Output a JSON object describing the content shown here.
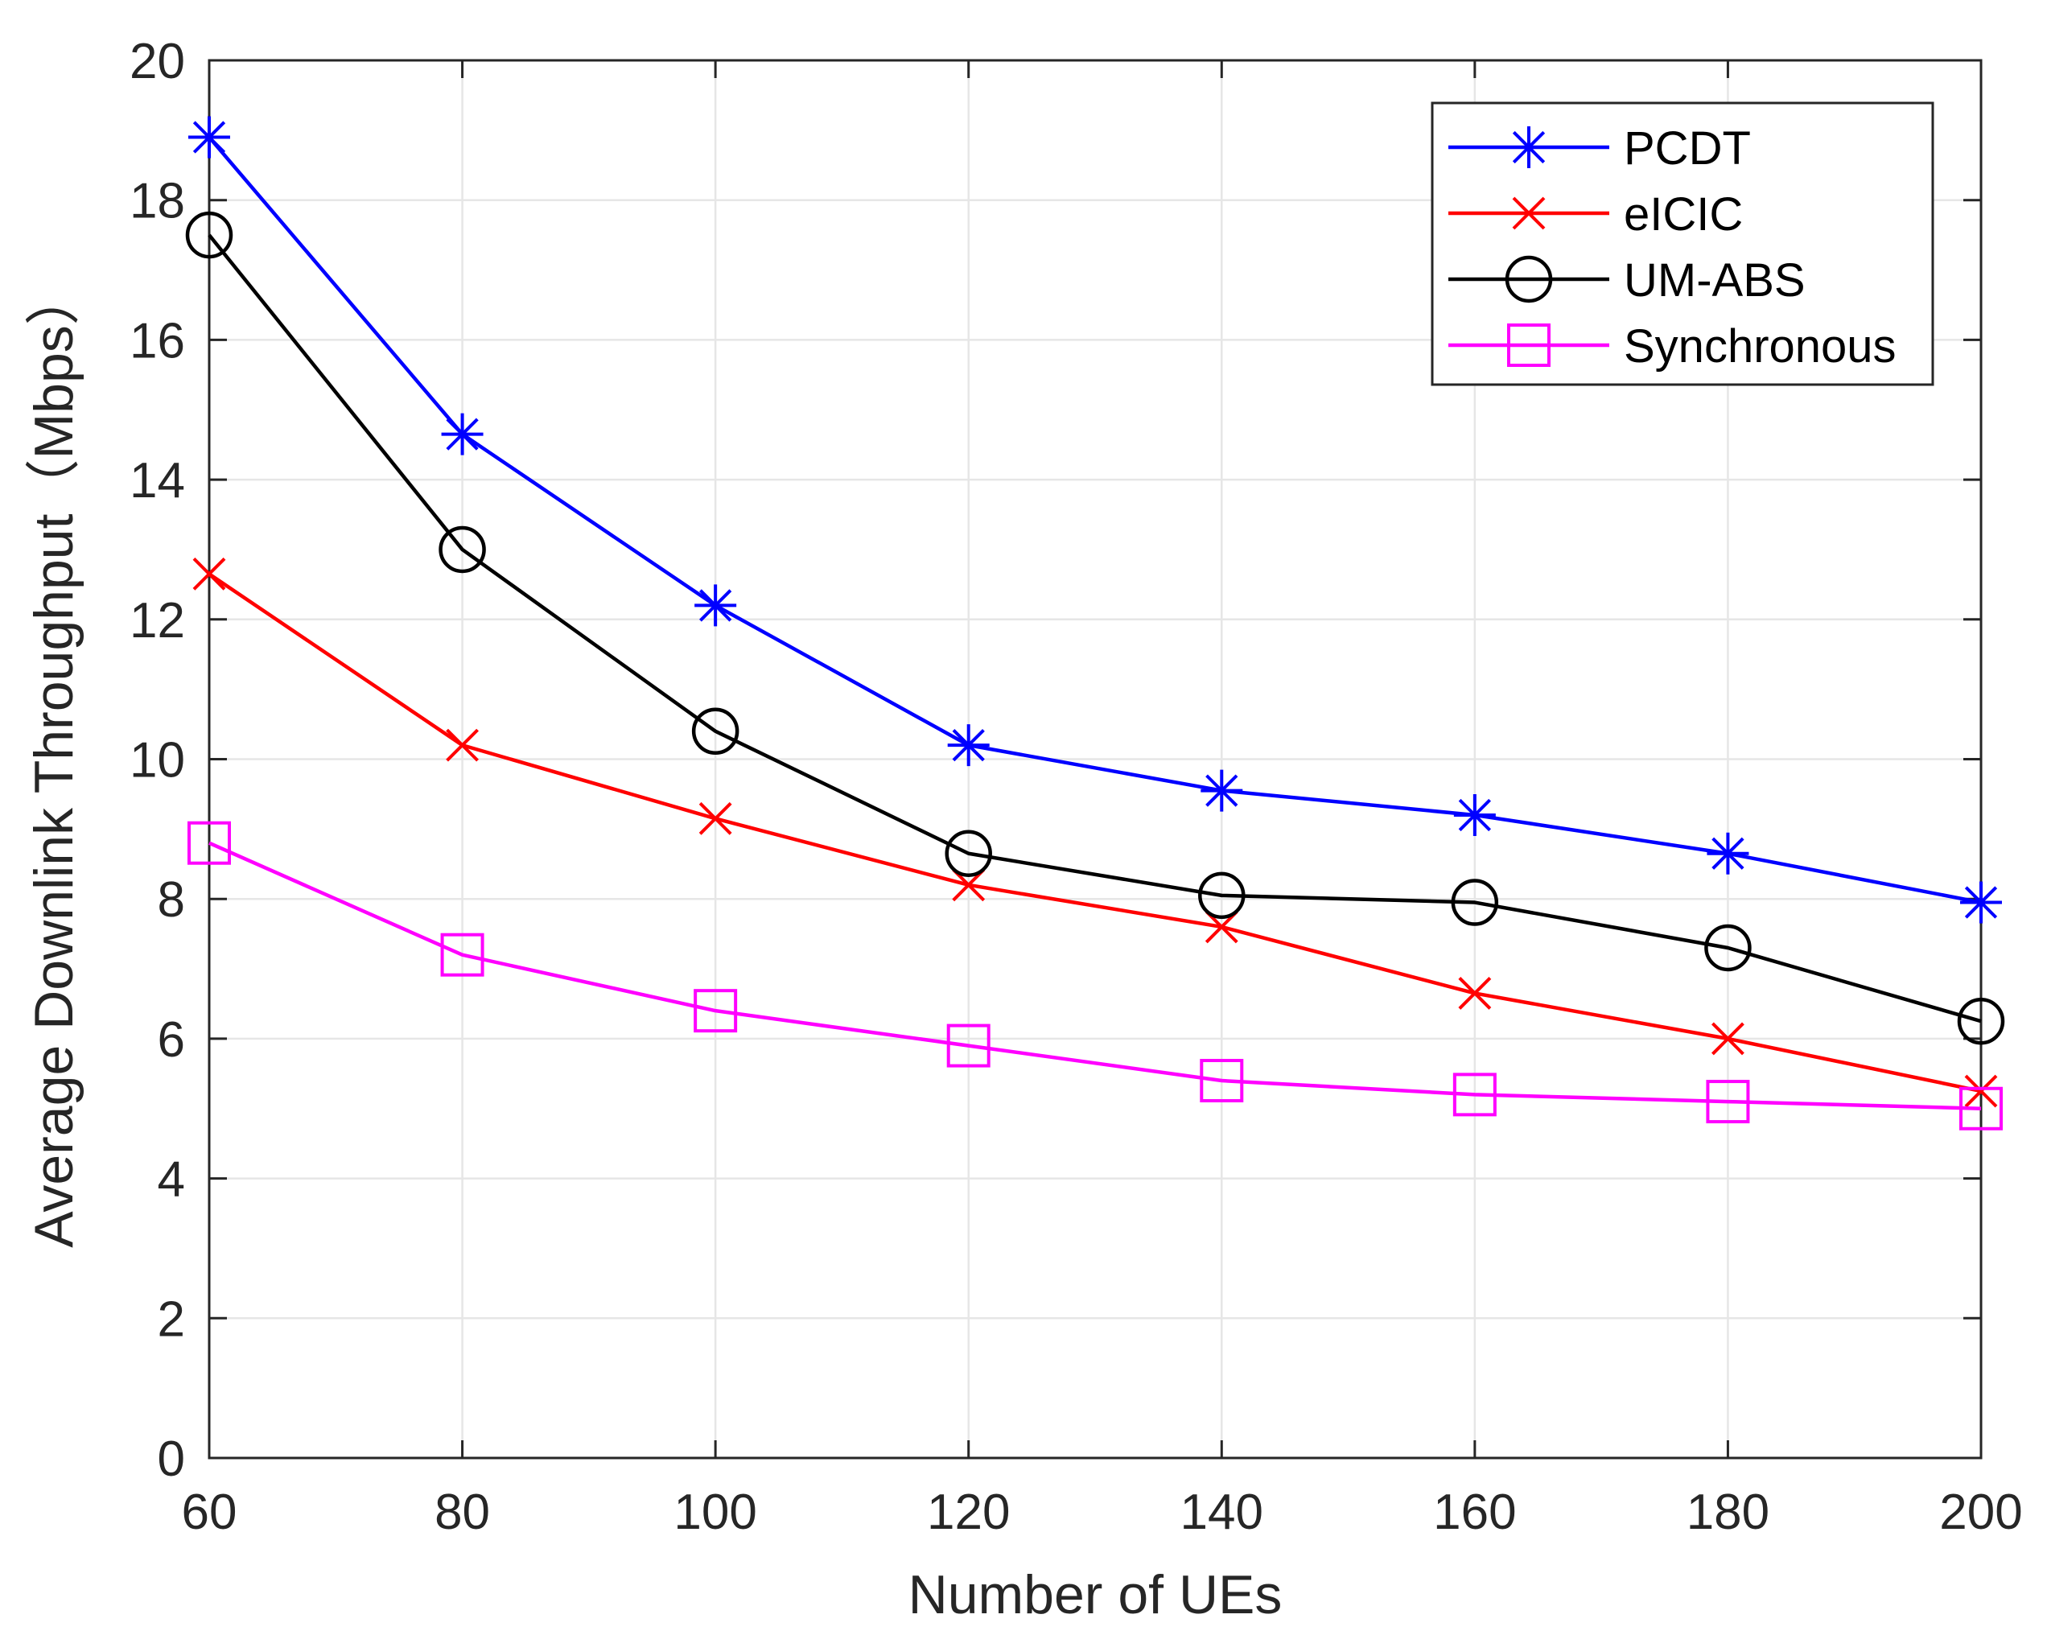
{
  "chart_data": {
    "type": "line",
    "title": "",
    "xlabel": "Number of UEs",
    "ylabel": "Average Downlink Throughput（Mbps）",
    "x": [
      60,
      80,
      100,
      120,
      140,
      160,
      180,
      200
    ],
    "xlim": [
      60,
      200
    ],
    "ylim": [
      0,
      20
    ],
    "xticks": [
      60,
      80,
      100,
      120,
      140,
      160,
      180,
      200
    ],
    "yticks": [
      0,
      2,
      4,
      6,
      8,
      10,
      12,
      14,
      16,
      18,
      20
    ],
    "grid": true,
    "legend_position": "top-right",
    "series": [
      {
        "name": "PCDT",
        "color": "#0000ff",
        "marker": "asterisk",
        "values": [
          18.9,
          14.65,
          12.2,
          10.2,
          9.55,
          9.2,
          8.65,
          7.95
        ]
      },
      {
        "name": "eICIC",
        "color": "#ff0000",
        "marker": "x",
        "values": [
          12.65,
          10.2,
          9.15,
          8.2,
          7.6,
          6.65,
          6.0,
          5.25
        ]
      },
      {
        "name": "UM-ABS",
        "color": "#000000",
        "marker": "circle",
        "values": [
          17.5,
          13.0,
          10.4,
          8.65,
          8.05,
          7.95,
          7.3,
          6.25
        ]
      },
      {
        "name": "Synchronous",
        "color": "#ff00ff",
        "marker": "square",
        "values": [
          8.8,
          7.2,
          6.4,
          5.9,
          5.4,
          5.2,
          5.1,
          5.0
        ]
      }
    ]
  }
}
